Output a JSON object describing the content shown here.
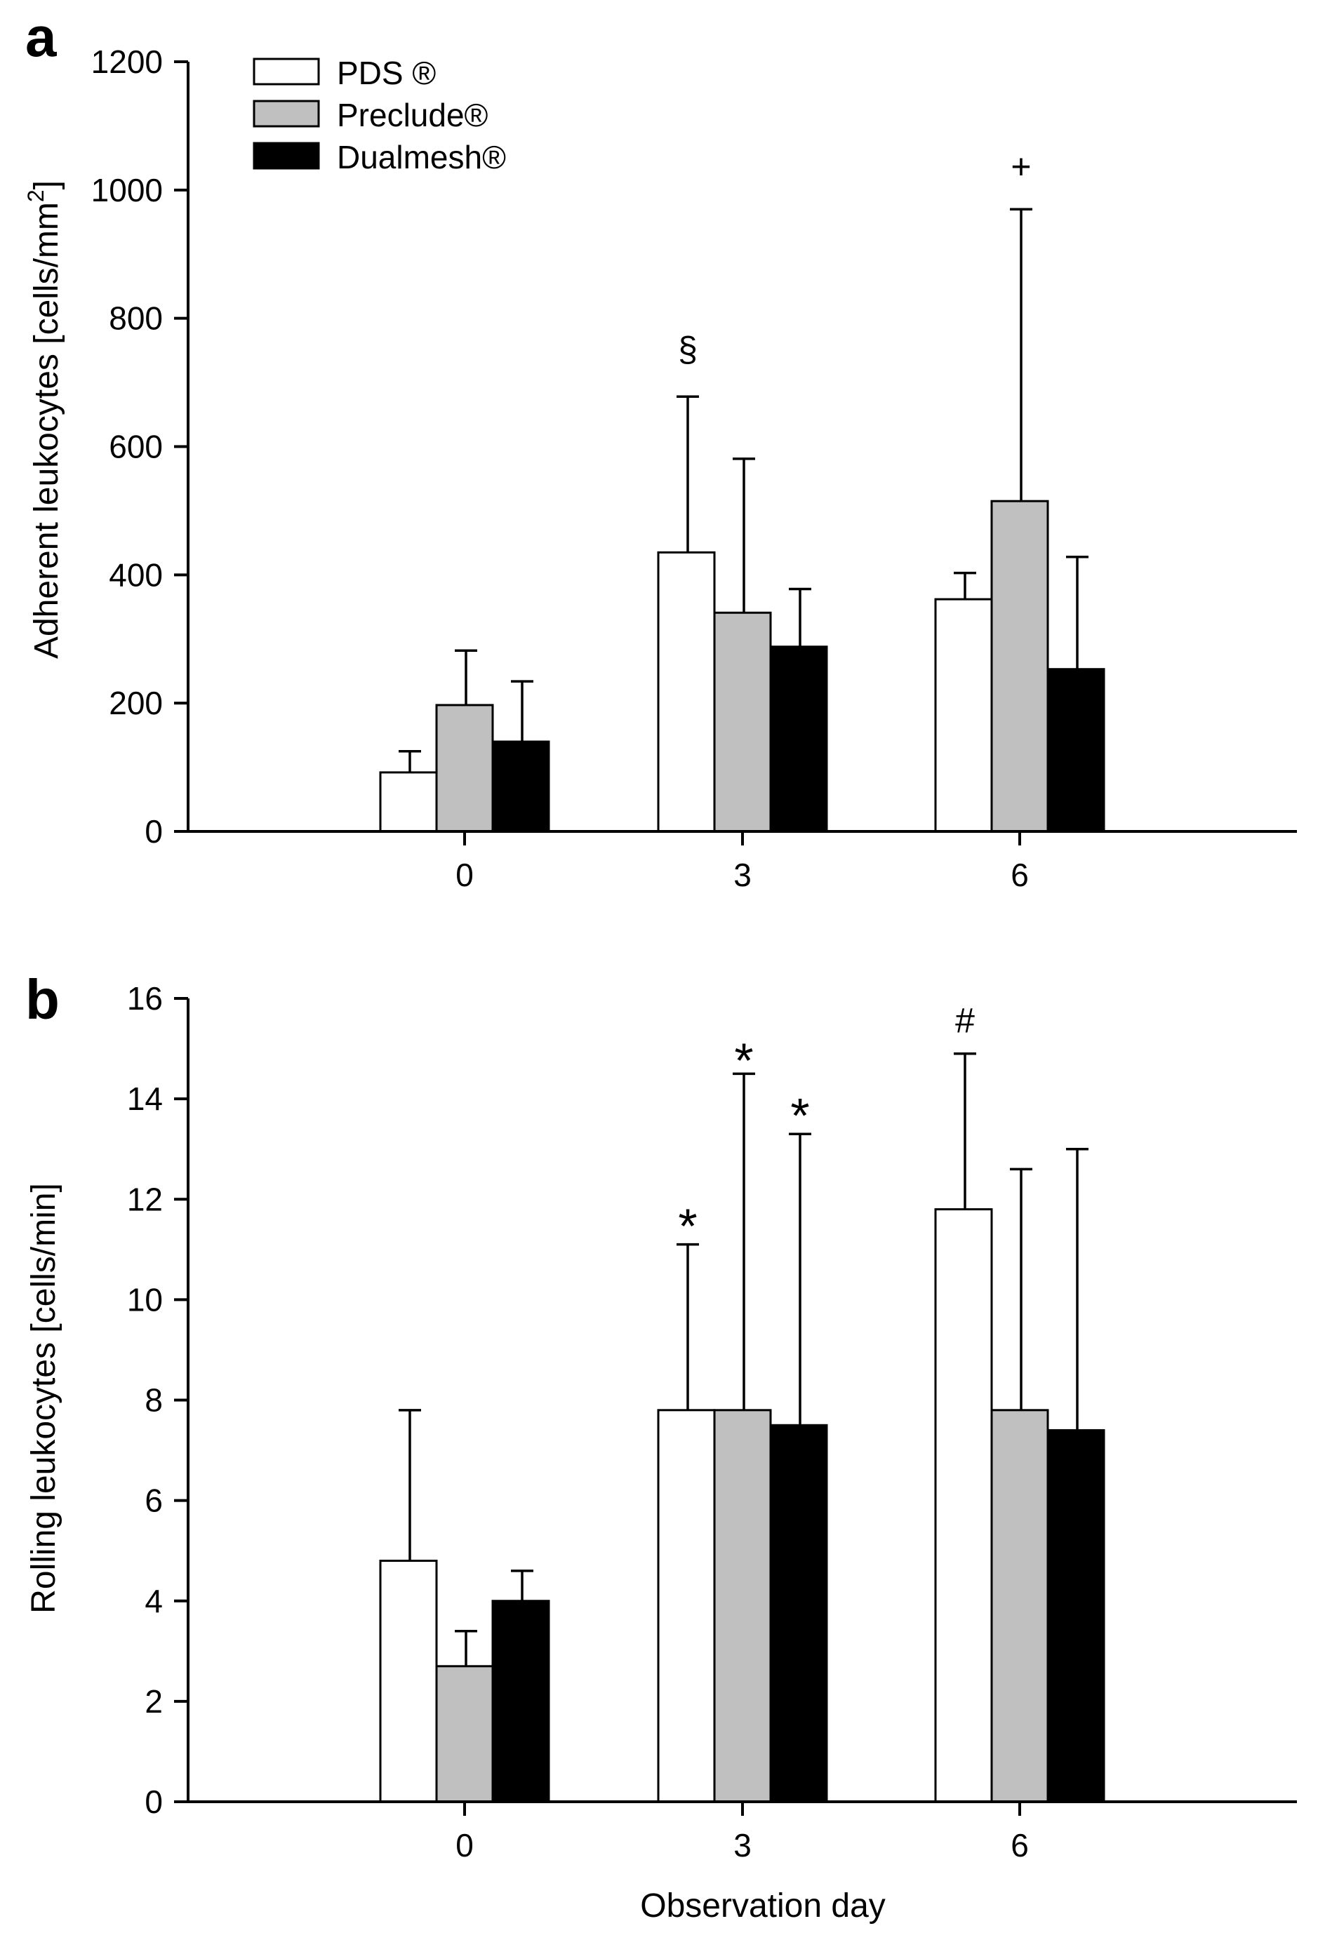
{
  "legend": [
    {
      "label": "PDS ®",
      "color": "#ffffff"
    },
    {
      "label": "Preclude®",
      "color": "#c0c0c0"
    },
    {
      "label": "Dualmesh®",
      "color": "#000000"
    }
  ],
  "xlabel": "Observation day",
  "chart_data": [
    {
      "panel": "a",
      "type": "bar",
      "ylabel": "Adherent leukocytes [cells/mm",
      "ylabel_superscript": "2",
      "ylabel_suffix": "]",
      "categories": [
        "0",
        "3",
        "6"
      ],
      "ylim": [
        0,
        1200
      ],
      "yticks": [
        "0",
        "200",
        "400",
        "600",
        "800",
        "1000",
        "1200"
      ],
      "series": [
        {
          "name": "PDS ®",
          "values": [
            92,
            435,
            362
          ],
          "errors": [
            125,
            678,
            403
          ]
        },
        {
          "name": "Preclude®",
          "values": [
            197,
            341,
            515
          ],
          "errors": [
            282,
            581,
            970
          ]
        },
        {
          "name": "Dualmesh®",
          "values": [
            140,
            288,
            253
          ],
          "errors": [
            234,
            378,
            428
          ]
        }
      ],
      "annotations": [
        {
          "text": "§",
          "category": "3",
          "series": "PDS ®",
          "y": 755
        },
        {
          "text": "+",
          "category": "6",
          "series": "Preclude®",
          "y": 1040
        }
      ]
    },
    {
      "panel": "b",
      "type": "bar",
      "ylabel": "Rolling leukocytes [cells/min]",
      "categories": [
        "0",
        "3",
        "6"
      ],
      "ylim": [
        0,
        16
      ],
      "yticks": [
        "0",
        "2",
        "4",
        "6",
        "8",
        "10",
        "12",
        "14",
        "16"
      ],
      "series": [
        {
          "name": "PDS ®",
          "values": [
            4.8,
            7.8,
            11.8
          ],
          "errors": [
            7.8,
            11.1,
            14.9
          ]
        },
        {
          "name": "Preclude®",
          "values": [
            2.7,
            7.8,
            7.8
          ],
          "errors": [
            3.4,
            14.5,
            12.6
          ]
        },
        {
          "name": "Dualmesh®",
          "values": [
            4.0,
            7.5,
            7.4
          ],
          "errors": [
            4.6,
            13.3,
            13.0
          ]
        }
      ],
      "annotations": [
        {
          "text": "*",
          "category": "3",
          "series": "PDS ®",
          "y": 11.8
        },
        {
          "text": "*",
          "category": "3",
          "series": "Preclude®",
          "y": 15.1
        },
        {
          "text": "*",
          "category": "3",
          "series": "Dualmesh®",
          "y": 14.0
        },
        {
          "text": "#",
          "category": "6",
          "series": "PDS ®",
          "y": 15.6
        }
      ]
    }
  ]
}
